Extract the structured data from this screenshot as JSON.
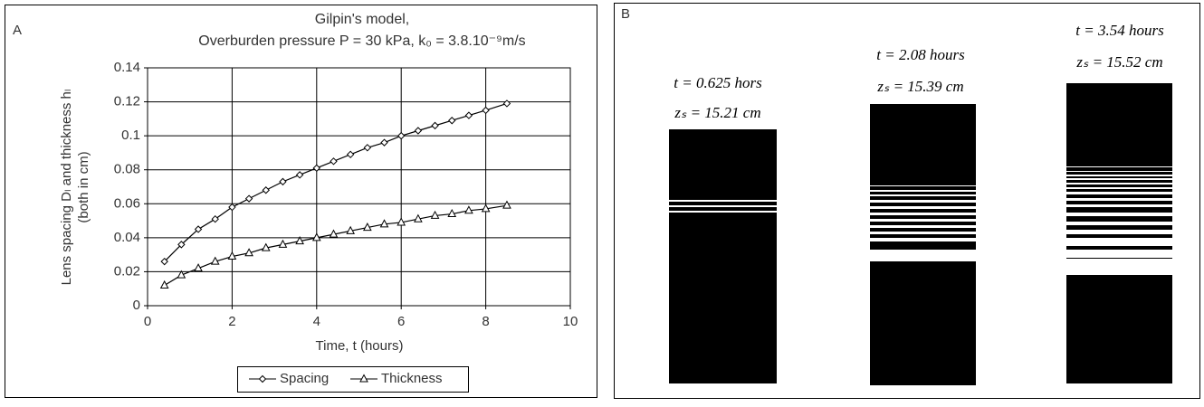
{
  "chart_data": {
    "type": "line",
    "panel_label": "A",
    "title": "Gilpin's model,",
    "subtitle": "Overburden pressure P = 30 kPa, k₀ = 3.8.10⁻⁹m/s",
    "y_label": "Lens spacing Dₗ and thickness hₗ",
    "y_label_note": "(both in cm)",
    "x_label": "Time, t (hours)",
    "x": [
      0.4,
      0.8,
      1.2,
      1.6,
      2.0,
      2.4,
      2.8,
      3.2,
      3.6,
      4.0,
      4.4,
      4.8,
      5.2,
      5.6,
      6.0,
      6.4,
      6.8,
      7.2,
      7.6,
      8.0,
      8.5
    ],
    "series": [
      {
        "name": "Spacing",
        "color": "#000000",
        "marker": "diamond",
        "values": [
          0.026,
          0.036,
          0.045,
          0.051,
          0.058,
          0.063,
          0.068,
          0.073,
          0.077,
          0.081,
          0.085,
          0.089,
          0.093,
          0.096,
          0.1,
          0.103,
          0.106,
          0.109,
          0.112,
          0.115,
          0.119
        ]
      },
      {
        "name": "Thickness",
        "color": "#000000",
        "marker": "triangle",
        "values": [
          0.012,
          0.018,
          0.022,
          0.026,
          0.029,
          0.031,
          0.034,
          0.036,
          0.038,
          0.04,
          0.042,
          0.044,
          0.046,
          0.048,
          0.049,
          0.051,
          0.053,
          0.054,
          0.056,
          0.057,
          0.059
        ]
      }
    ],
    "xlim": [
      0,
      10
    ],
    "xticks": [
      0,
      2,
      4,
      6,
      8,
      10
    ],
    "ylim": [
      0,
      0.14
    ],
    "yticks": [
      0,
      0.02,
      0.04,
      0.06,
      0.08,
      0.1,
      0.12,
      0.14
    ],
    "grid": true,
    "legend": "bottom"
  },
  "panel_b": {
    "label": "B",
    "columns": [
      {
        "time": "t = 0.625 hors",
        "depth": "zₛ = 15.21 cm"
      },
      {
        "time": "t = 2.08 hours",
        "depth": "zₛ = 15.39 cm"
      },
      {
        "time": "t = 3.54 hours",
        "depth": "zₛ = 15.52 cm"
      }
    ]
  }
}
